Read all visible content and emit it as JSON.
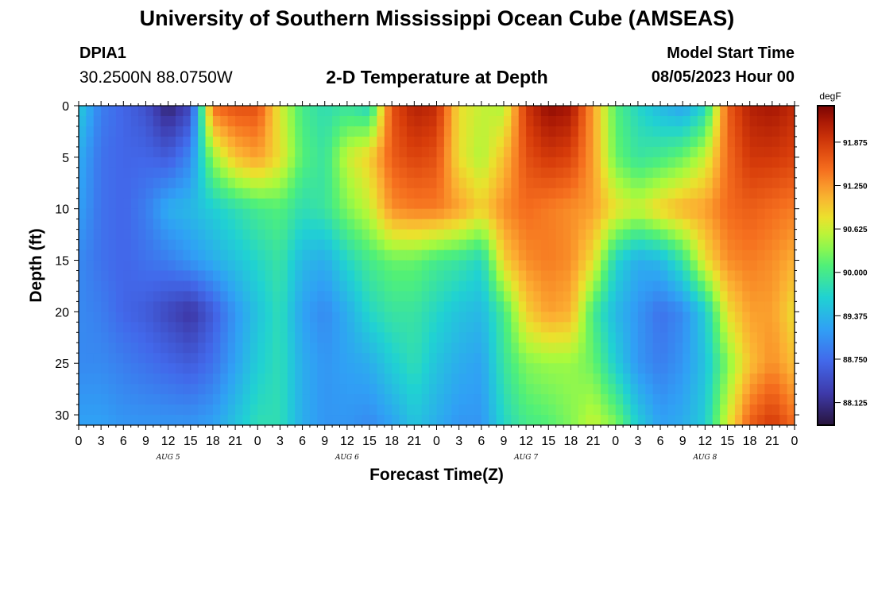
{
  "header": {
    "title": "University of Southern Mississippi Ocean Cube (AMSEAS)",
    "station_id": "DPIA1",
    "station_coords": "30.2500N  88.0750W",
    "subtitle": "2-D Temperature at Depth",
    "model_start_label": "Model Start Time",
    "model_start_value": "08/05/2023 Hour 00"
  },
  "footer": {
    "title": "University of Southern Mississippi Ocean Cube (AMSEAS)"
  },
  "chart_data": {
    "type": "heatmap",
    "xlabel": "Forecast Time(Z)",
    "ylabel": "Depth (ft)",
    "x_hours": [
      0,
      3,
      6,
      9,
      12,
      15,
      18,
      21,
      24,
      27,
      30,
      33,
      36,
      39,
      42,
      45,
      48,
      51,
      54,
      57,
      60,
      63,
      66,
      69,
      72,
      75,
      78,
      81,
      84,
      87,
      90,
      93,
      96
    ],
    "x_tick_labels": [
      "0",
      "3",
      "6",
      "9",
      "12",
      "15",
      "18",
      "21",
      "0",
      "3",
      "6",
      "9",
      "12",
      "15",
      "18",
      "21",
      "0",
      "3",
      "6",
      "9",
      "12",
      "15",
      "18",
      "21",
      "0",
      "3",
      "6",
      "9",
      "12",
      "15",
      "18",
      "21",
      "0"
    ],
    "day_labels": [
      {
        "label": "AUG 5",
        "hour": 12
      },
      {
        "label": "AUG 6",
        "hour": 36
      },
      {
        "label": "AUG 7",
        "hour": 60
      },
      {
        "label": "AUG 8",
        "hour": 84
      }
    ],
    "xlim": [
      0,
      96
    ],
    "depths_ft": [
      0,
      5,
      10,
      15,
      20,
      25,
      31
    ],
    "y_tick_labels": [
      "0",
      "5",
      "10",
      "15",
      "20",
      "25",
      "30"
    ],
    "y_ticks": [
      0,
      5,
      10,
      15,
      20,
      25,
      30
    ],
    "ylim": [
      0,
      31
    ],
    "colorbar": {
      "unit": "degF",
      "tick_labels": [
        "91.875",
        "91.250",
        "90.625",
        "90.000",
        "89.375",
        "88.750",
        "88.125"
      ],
      "tick_values": [
        91.875,
        91.25,
        90.625,
        90.0,
        89.375,
        88.75,
        88.125
      ],
      "min": 87.8,
      "max": 92.4
    },
    "values": [
      [
        89.6,
        88.9,
        88.7,
        88.5,
        88.0,
        88.4,
        91.5,
        91.7,
        91.7,
        90.7,
        90.0,
        89.8,
        89.9,
        89.7,
        91.7,
        92.1,
        92.0,
        90.8,
        90.6,
        90.5,
        91.9,
        92.3,
        92.2,
        91.2,
        90.1,
        89.7,
        89.4,
        89.2,
        89.7,
        91.6,
        92.1,
        92.2,
        92.0
      ],
      [
        89.3,
        88.8,
        88.7,
        88.7,
        88.6,
        89.0,
        90.4,
        91.0,
        91.2,
        90.8,
        90.1,
        89.9,
        90.6,
        90.9,
        91.6,
        91.8,
        91.7,
        90.8,
        90.5,
        91.0,
        91.7,
        91.9,
        91.8,
        91.2,
        90.2,
        89.9,
        90.0,
        90.2,
        90.6,
        91.5,
        91.9,
        91.9,
        91.8
      ],
      [
        89.2,
        88.8,
        88.7,
        88.9,
        89.3,
        89.4,
        89.6,
        89.8,
        90.0,
        90.1,
        89.8,
        89.9,
        90.3,
        90.6,
        91.3,
        91.4,
        91.4,
        91.2,
        90.9,
        91.3,
        91.5,
        91.4,
        91.3,
        91.2,
        90.8,
        90.6,
        90.9,
        91.1,
        91.2,
        91.5,
        91.6,
        91.5,
        91.4
      ],
      [
        89.0,
        88.8,
        88.7,
        88.8,
        88.9,
        89.1,
        89.3,
        89.5,
        89.7,
        89.9,
        89.4,
        89.3,
        89.7,
        90.0,
        90.2,
        90.2,
        90.0,
        89.9,
        89.7,
        90.9,
        91.3,
        91.4,
        91.3,
        90.8,
        89.7,
        89.3,
        89.4,
        89.9,
        90.8,
        91.3,
        91.4,
        91.3,
        91.1
      ],
      [
        89.0,
        88.9,
        88.7,
        88.6,
        88.4,
        88.2,
        88.6,
        89.1,
        89.5,
        89.8,
        89.2,
        89.0,
        89.3,
        89.7,
        89.9,
        89.9,
        89.7,
        89.5,
        89.4,
        90.0,
        90.9,
        91.2,
        91.1,
        90.0,
        89.4,
        89.1,
        88.8,
        89.0,
        89.6,
        90.8,
        91.2,
        91.2,
        90.8
      ],
      [
        89.0,
        89.0,
        88.9,
        88.8,
        88.7,
        88.6,
        88.8,
        89.2,
        89.6,
        89.8,
        89.3,
        89.1,
        89.2,
        89.3,
        89.6,
        89.8,
        89.5,
        89.3,
        89.2,
        89.9,
        90.3,
        90.4,
        90.4,
        90.2,
        89.6,
        89.1,
        88.9,
        89.1,
        89.5,
        90.3,
        91.0,
        91.3,
        91.0
      ],
      [
        89.2,
        89.2,
        89.1,
        89.1,
        89.1,
        89.1,
        89.2,
        89.5,
        89.8,
        89.8,
        89.3,
        89.1,
        89.1,
        89.0,
        89.2,
        89.5,
        89.3,
        89.1,
        89.1,
        89.7,
        90.0,
        90.1,
        90.3,
        90.6,
        90.3,
        89.6,
        89.2,
        89.3,
        89.6,
        90.7,
        91.6,
        91.9,
        91.5
      ]
    ]
  }
}
